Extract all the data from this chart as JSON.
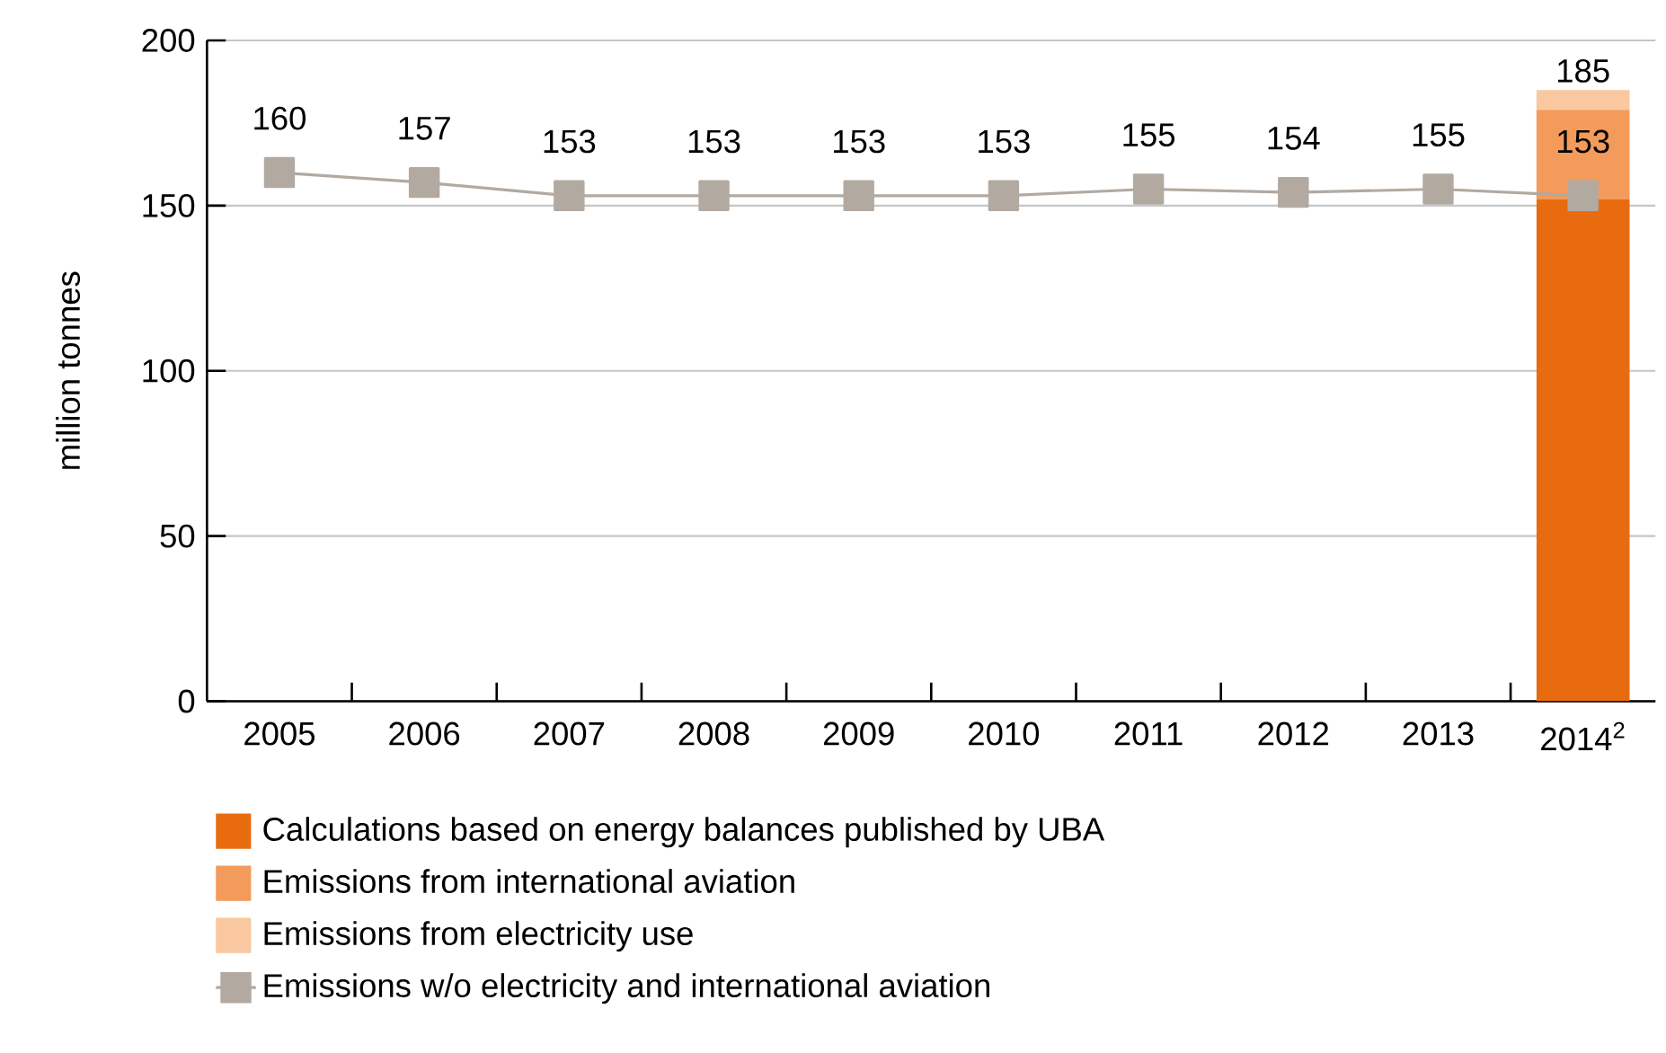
{
  "chart_data": {
    "type": "bar",
    "stacked": true,
    "ylabel": "million tonnes",
    "categories": [
      "2005",
      "2006",
      "2007",
      "2008",
      "2009",
      "2010",
      "2011",
      "2012",
      "2013",
      "2014$^{2}$"
    ],
    "ylim": [
      0,
      200
    ],
    "yticks": [
      0,
      50,
      100,
      150,
      200
    ],
    "grid": "y",
    "legend": "bottom",
    "marker": "square",
    "series": [
      {
        "name": "Calculations based on energy balances published by UBA",
        "color": "#e96b10",
        "values": [
          null,
          null,
          null,
          null,
          null,
          null,
          null,
          null,
          null,
          152
        ]
      },
      {
        "name": "Emissions from international aviation",
        "color": "#f39b5a",
        "values": [
          null,
          null,
          null,
          null,
          null,
          null,
          null,
          null,
          null,
          27
        ]
      },
      {
        "name": "Emissions from electricity use",
        "color": "#f9c8a0",
        "values": [
          null,
          null,
          null,
          null,
          null,
          null,
          null,
          null,
          null,
          6
        ]
      },
      {
        "name": "Emissions w/o electricity and international aviation",
        "type": "line",
        "color": "#b2a9a1",
        "values": [
          160,
          157,
          153,
          153,
          153,
          153,
          155,
          154,
          155,
          153
        ],
        "value_labels": [
          "160",
          "157",
          "153",
          "153",
          "153",
          "153",
          "155",
          "154",
          "155",
          "153"
        ]
      }
    ],
    "totals": [
      null,
      null,
      null,
      null,
      null,
      null,
      null,
      null,
      null,
      "185"
    ]
  }
}
